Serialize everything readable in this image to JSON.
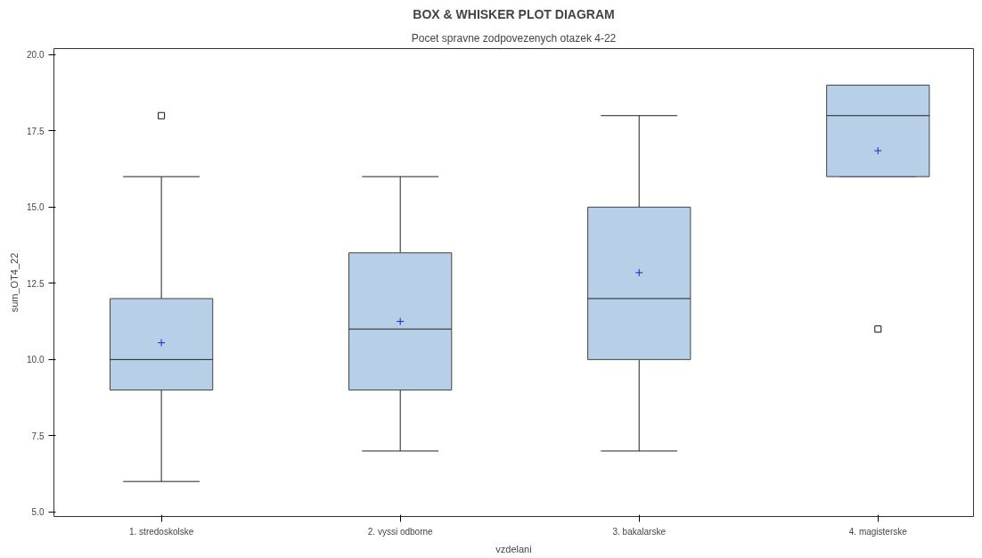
{
  "chart_data": {
    "type": "box",
    "title": "BOX & WHISKER PLOT DIAGRAM",
    "subtitle": "Pocet spravne zodpovezenych otazek 4-22",
    "xlabel": "vzdelani",
    "ylabel": "sum_OT4_22",
    "categories": [
      "1. stredoskolske",
      "2. vyssi odborne",
      "3. bakalarske",
      "4. magisterske"
    ],
    "color": "#b8cfe8",
    "boxes": [
      {
        "low": 6,
        "q1": 9,
        "median": 10,
        "q3": 12,
        "high": 16,
        "mean": 10.55,
        "outliers": [
          18
        ]
      },
      {
        "low": 7,
        "q1": 9,
        "median": 11,
        "q3": 13.5,
        "high": 16,
        "mean": 11.25
      },
      {
        "low": 7,
        "q1": 10,
        "median": 12,
        "q3": 15,
        "high": 18,
        "mean": 12.85
      },
      {
        "low": 16,
        "q1": 16,
        "median": 18,
        "q3": 19,
        "high": 19,
        "mean": 16.85,
        "outliers": [
          11
        ]
      }
    ],
    "ylim": [
      4.85,
      20.2
    ],
    "yticks": [
      {
        "value": 5,
        "label": "5.0"
      },
      {
        "value": 7.5,
        "label": "7.5"
      },
      {
        "value": 10,
        "label": "10.0"
      },
      {
        "value": 12.5,
        "label": "12.5"
      },
      {
        "value": 15,
        "label": "15.0"
      },
      {
        "value": 17.5,
        "label": "17.5"
      },
      {
        "value": 20,
        "label": "20.0"
      }
    ],
    "grid": false
  }
}
